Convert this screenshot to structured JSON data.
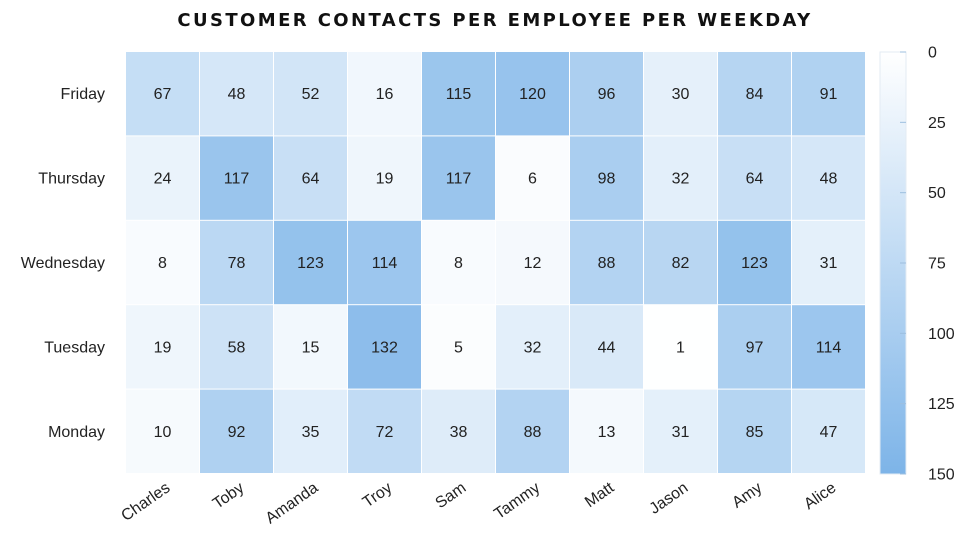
{
  "chart_data": {
    "type": "heatmap",
    "title": "CUSTOMER CONTACTS PER EMPLOYEE PER WEEKDAY",
    "columns": [
      "Charles",
      "Toby",
      "Amanda",
      "Troy",
      "Sam",
      "Tammy",
      "Matt",
      "Jason",
      "Amy",
      "Alice"
    ],
    "rows": [
      "Friday",
      "Thursday",
      "Wednesday",
      "Tuesday",
      "Monday"
    ],
    "values": [
      [
        67,
        48,
        52,
        16,
        115,
        120,
        96,
        30,
        84,
        91
      ],
      [
        24,
        117,
        64,
        19,
        117,
        6,
        98,
        32,
        64,
        48
      ],
      [
        8,
        78,
        123,
        114,
        8,
        12,
        88,
        82,
        123,
        31
      ],
      [
        19,
        58,
        15,
        132,
        5,
        32,
        44,
        1,
        97,
        114
      ],
      [
        10,
        92,
        35,
        72,
        38,
        88,
        13,
        31,
        85,
        47
      ]
    ],
    "colorbar": {
      "min": 0,
      "max": 150,
      "ticks": [
        0,
        25,
        50,
        75,
        100,
        125,
        150
      ],
      "color_low": "#ffffff",
      "color_high": "#7db4e8"
    }
  }
}
